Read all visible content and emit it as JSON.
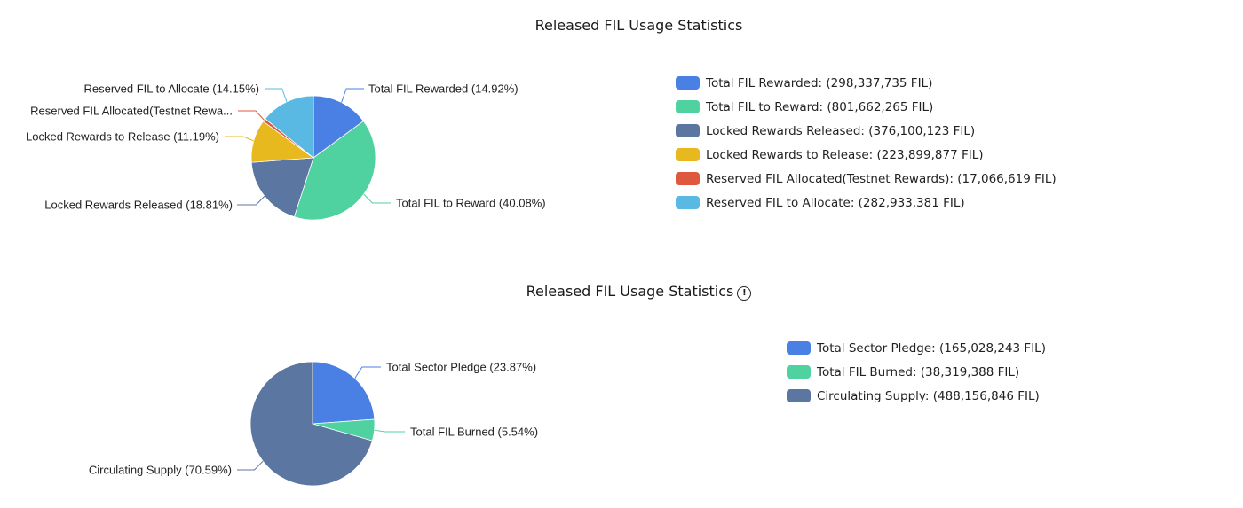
{
  "chart_data": [
    {
      "type": "pie",
      "title": "Released FIL Usage Statistics",
      "has_info_icon": false,
      "legend_position": "right",
      "categories": [
        "Total FIL Rewarded",
        "Total FIL to Reward",
        "Locked Rewards Released",
        "Locked Rewards to Release",
        "Reserved FIL Allocated(Testnet Rewards)",
        "Reserved FIL to Allocate"
      ],
      "values": [
        298337735,
        801662265,
        376100123,
        223899877,
        17066619,
        282933381
      ],
      "percents": [
        14.92,
        40.08,
        18.81,
        11.19,
        0.85,
        14.15
      ],
      "unit": "FIL",
      "colors": [
        "#4a7fe3",
        "#4fd1a0",
        "#5b76a0",
        "#e8b81f",
        "#e0573f",
        "#5ab9e2"
      ],
      "slice_labels": [
        "Total FIL Rewarded (14.92%)",
        "Total FIL to Reward (40.08%)",
        "Locked Rewards Released (18.81%)",
        "Locked Rewards to Release (11.19%)",
        "Reserved FIL Allocated(Testnet Rewa...",
        "Reserved FIL to Allocate (14.15%)"
      ],
      "legend": [
        "Total FIL Rewarded: (298,337,735 FIL)",
        "Total FIL to Reward: (801,662,265 FIL)",
        "Locked Rewards Released: (376,100,123 FIL)",
        "Locked Rewards to Release: (223,899,877 FIL)",
        "Reserved FIL Allocated(Testnet Rewards): (17,066,619 FIL)",
        "Reserved FIL to Allocate: (282,933,381 FIL)"
      ]
    },
    {
      "type": "pie",
      "title": "Released FIL Usage Statistics",
      "has_info_icon": true,
      "info_icon_glyph": "!",
      "legend_position": "right",
      "categories": [
        "Total Sector Pledge",
        "Total FIL Burned",
        "Circulating Supply"
      ],
      "values": [
        165028243,
        38319388,
        488156846
      ],
      "percents": [
        23.87,
        5.54,
        70.59
      ],
      "unit": "FIL",
      "colors": [
        "#4a7fe3",
        "#4fd1a0",
        "#5b76a0"
      ],
      "slice_labels": [
        "Total Sector Pledge (23.87%)",
        "Total FIL Burned (5.54%)",
        "Circulating Supply (70.59%)"
      ],
      "legend": [
        "Total Sector Pledge: (165,028,243 FIL)",
        "Total FIL Burned: (38,319,388 FIL)",
        "Circulating Supply: (488,156,846 FIL)"
      ]
    }
  ]
}
